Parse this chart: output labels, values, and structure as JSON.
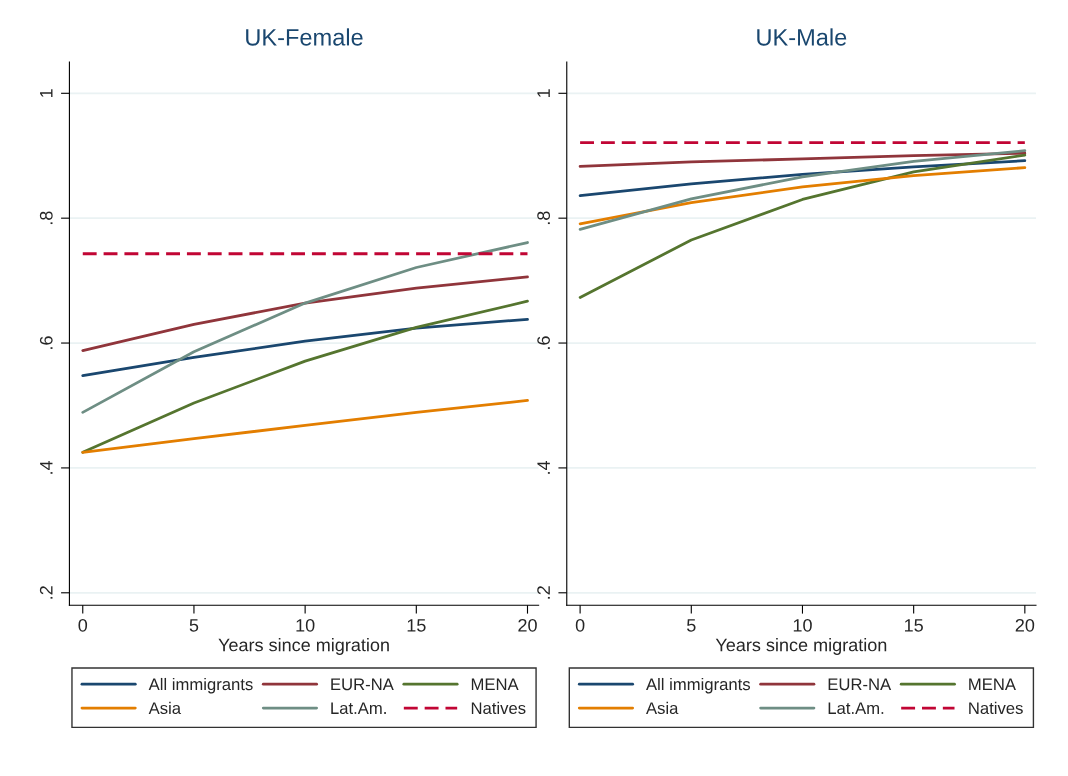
{
  "chart_data": [
    {
      "type": "line",
      "title": "UK-Female",
      "xlabel": "Years since migration",
      "x": [
        0,
        5,
        10,
        15,
        20
      ],
      "series": [
        {
          "name": "All immigrants",
          "color": "#1a476f",
          "values": [
            0.548,
            0.577,
            0.603,
            0.624,
            0.638
          ]
        },
        {
          "name": "EUR-NA",
          "color": "#90353b",
          "values": [
            0.588,
            0.63,
            0.664,
            0.688,
            0.706
          ]
        },
        {
          "name": "MENA",
          "color": "#55752f",
          "values": [
            0.425,
            0.504,
            0.571,
            0.625,
            0.667
          ]
        },
        {
          "name": "Asia",
          "color": "#e37e00",
          "values": [
            0.425,
            0.447,
            0.468,
            0.489,
            0.508
          ]
        },
        {
          "name": "Lat.Am.",
          "color": "#6e8e84",
          "values": [
            0.489,
            0.586,
            0.664,
            0.721,
            0.761
          ]
        },
        {
          "name": "Natives",
          "color": "#c10534",
          "line_style": "dashed",
          "values": [
            0.743,
            0.743,
            0.743,
            0.743,
            0.743
          ]
        }
      ],
      "xlim": [
        -0.6,
        20.5
      ],
      "xticks": [
        0,
        5,
        10,
        15,
        20
      ],
      "ylim": [
        0.18,
        1.05
      ],
      "yticks": [
        {
          "value": 0.2,
          "label": ".2"
        },
        {
          "value": 0.4,
          "label": ".4"
        },
        {
          "value": 0.6,
          "label": ".6"
        },
        {
          "value": 0.8,
          "label": ".8"
        },
        1
      ],
      "grid": "y",
      "legend": "bottom",
      "marker": "none"
    },
    {
      "type": "line",
      "title": "UK-Male",
      "xlabel": "Years since migration",
      "x": [
        0,
        5,
        10,
        15,
        20
      ],
      "series": [
        {
          "name": "All immigrants",
          "color": "#1a476f",
          "values": [
            0.836,
            0.855,
            0.87,
            0.882,
            0.892
          ]
        },
        {
          "name": "EUR-NA",
          "color": "#90353b",
          "values": [
            0.883,
            0.89,
            0.895,
            0.9,
            0.904
          ]
        },
        {
          "name": "MENA",
          "color": "#55752f",
          "values": [
            0.673,
            0.765,
            0.83,
            0.874,
            0.901
          ]
        },
        {
          "name": "Asia",
          "color": "#e37e00",
          "values": [
            0.791,
            0.825,
            0.85,
            0.868,
            0.881
          ]
        },
        {
          "name": "Lat.Am.",
          "color": "#6e8e84",
          "values": [
            0.782,
            0.831,
            0.866,
            0.891,
            0.908
          ]
        },
        {
          "name": "Natives",
          "color": "#c10534",
          "line_style": "dashed",
          "values": [
            0.921,
            0.921,
            0.921,
            0.921,
            0.921
          ]
        }
      ],
      "xlim": [
        -0.6,
        20.5
      ],
      "xticks": [
        0,
        5,
        10,
        15,
        20
      ],
      "ylim": [
        0.18,
        1.05
      ],
      "yticks": [
        {
          "value": 0.2,
          "label": ".2"
        },
        {
          "value": 0.4,
          "label": ".4"
        },
        {
          "value": 0.6,
          "label": ".6"
        },
        {
          "value": 0.8,
          "label": ".8"
        },
        1
      ],
      "grid": "y",
      "legend": "bottom",
      "marker": "none"
    }
  ]
}
